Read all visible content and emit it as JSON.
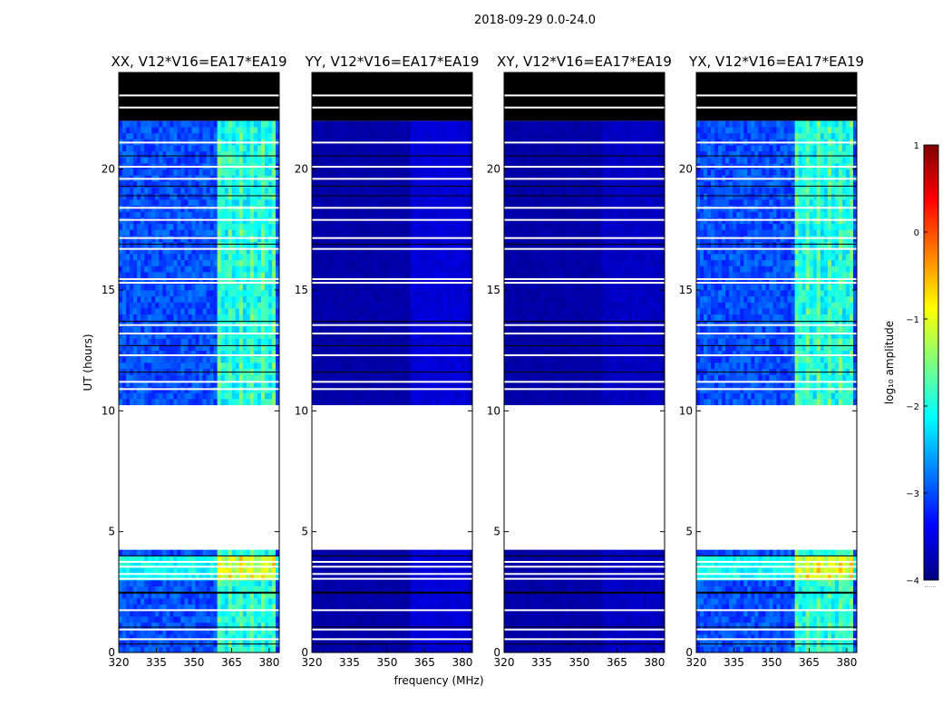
{
  "figure": {
    "suptitle": "2018-09-29 0.0-24.0",
    "xlabel": "frequency (MHz)",
    "ylabel": "UT (hours)",
    "colorbar_label": "log₁₀ amplitude",
    "colorbar_caption": "......"
  },
  "chart_data": {
    "type": "heatmap",
    "x_range": [
      320,
      384
    ],
    "y_range": [
      0,
      24
    ],
    "x_ticks": [
      320,
      335,
      350,
      365,
      380
    ],
    "y_ticks": [
      0,
      5,
      10,
      15,
      20
    ],
    "colorbar_range": [
      -4,
      1
    ],
    "colorbar_ticks": [
      -4,
      -3,
      -2,
      -1,
      0,
      1
    ],
    "colorbar_tick_labels": [
      "−4",
      "−3",
      "−2",
      "−1",
      "0",
      "1"
    ],
    "colormap": [
      "#00007f",
      "#0000ff",
      "#007fff",
      "#00ffff",
      "#7fff7f",
      "#ffff00",
      "#ff7f00",
      "#ff0000",
      "#7f0000"
    ],
    "no_data_hours": [
      10.3,
      4.2
    ],
    "flagged_hours_top": [
      22.0,
      24.0
    ],
    "rfi_band_mhz": [
      360,
      382
    ],
    "panels": [
      {
        "title": "XX, V12*V16=EA17*EA19",
        "baseline_log_amp": -3.0,
        "rfi_log_amp": -2.2
      },
      {
        "title": "YY, V12*V16=EA17*EA19",
        "baseline_log_amp": -3.8,
        "rfi_log_amp": -3.6
      },
      {
        "title": "XY, V12*V16=EA17*EA19",
        "baseline_log_amp": -3.8,
        "rfi_log_amp": -3.7
      },
      {
        "title": "YX, V12*V16=EA17*EA19",
        "baseline_log_amp": -3.0,
        "rfi_log_amp": -2.2
      }
    ]
  }
}
